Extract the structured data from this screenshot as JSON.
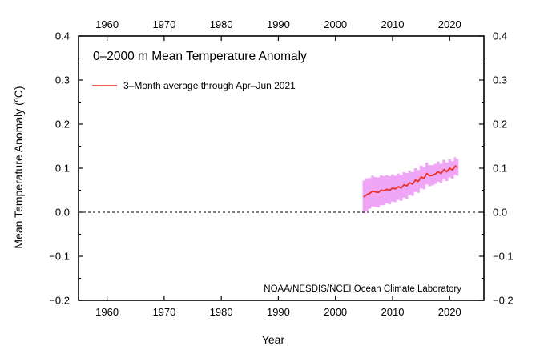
{
  "chart_data": {
    "type": "line",
    "title": "0–2000 m Mean Temperature Anomaly",
    "xlabel": "Year",
    "ylabel": "Mean Temperature Anomaly (",
    "ylabel_unit_sup": "o",
    "ylabel_unit_tail": "C)",
    "xlim": [
      1955,
      2026
    ],
    "ylim": [
      -0.2,
      0.4
    ],
    "x_ticks": [
      1960,
      1970,
      1980,
      1990,
      2000,
      2010,
      2020
    ],
    "x_tick_labels": [
      "1960",
      "1970",
      "1980",
      "1990",
      "2000",
      "2010",
      "2020"
    ],
    "y_ticks": [
      -0.2,
      -0.1,
      0.0,
      0.1,
      0.2,
      0.3,
      0.4
    ],
    "y_tick_labels": [
      "−0.2",
      "−0.1",
      "0.0",
      "0.1",
      "0.2",
      "0.3",
      "0.4"
    ],
    "zero_line": true,
    "legend": {
      "label": "3–Month average through Apr–Jun 2021",
      "placement": "top-left"
    },
    "credit": "NOAA/NESDIS/NCEI Ocean Climate Laboratory",
    "colors": {
      "line": "#e8322a",
      "band": "#ee9cf5",
      "axes": "#000000"
    },
    "series": [
      {
        "name": "3-Month average through Apr-Jun 2021",
        "x": [
          2005.0,
          2005.5,
          2006.0,
          2006.5,
          2007.0,
          2007.5,
          2008.0,
          2008.5,
          2009.0,
          2009.5,
          2010.0,
          2010.5,
          2011.0,
          2011.5,
          2012.0,
          2012.5,
          2013.0,
          2013.5,
          2014.0,
          2014.5,
          2015.0,
          2015.5,
          2016.0,
          2016.5,
          2017.0,
          2017.5,
          2018.0,
          2018.5,
          2019.0,
          2019.5,
          2020.0,
          2020.5,
          2021.0,
          2021.3
        ],
        "y": [
          0.035,
          0.04,
          0.043,
          0.048,
          0.046,
          0.045,
          0.05,
          0.049,
          0.052,
          0.05,
          0.055,
          0.053,
          0.058,
          0.055,
          0.062,
          0.06,
          0.067,
          0.064,
          0.073,
          0.07,
          0.08,
          0.077,
          0.088,
          0.083,
          0.084,
          0.087,
          0.092,
          0.088,
          0.097,
          0.092,
          0.1,
          0.096,
          0.105,
          0.102
        ],
        "band_lower": [
          -0.002,
          0.003,
          0.008,
          0.013,
          0.012,
          0.011,
          0.016,
          0.016,
          0.02,
          0.018,
          0.024,
          0.023,
          0.028,
          0.026,
          0.033,
          0.031,
          0.039,
          0.037,
          0.046,
          0.044,
          0.054,
          0.052,
          0.063,
          0.059,
          0.061,
          0.064,
          0.069,
          0.066,
          0.075,
          0.071,
          0.079,
          0.076,
          0.085,
          0.083
        ],
        "band_upper": [
          0.072,
          0.077,
          0.078,
          0.083,
          0.08,
          0.079,
          0.084,
          0.082,
          0.084,
          0.082,
          0.086,
          0.083,
          0.088,
          0.084,
          0.091,
          0.089,
          0.095,
          0.091,
          0.1,
          0.096,
          0.106,
          0.102,
          0.113,
          0.107,
          0.107,
          0.11,
          0.115,
          0.11,
          0.119,
          0.113,
          0.121,
          0.116,
          0.125,
          0.121
        ]
      }
    ]
  }
}
